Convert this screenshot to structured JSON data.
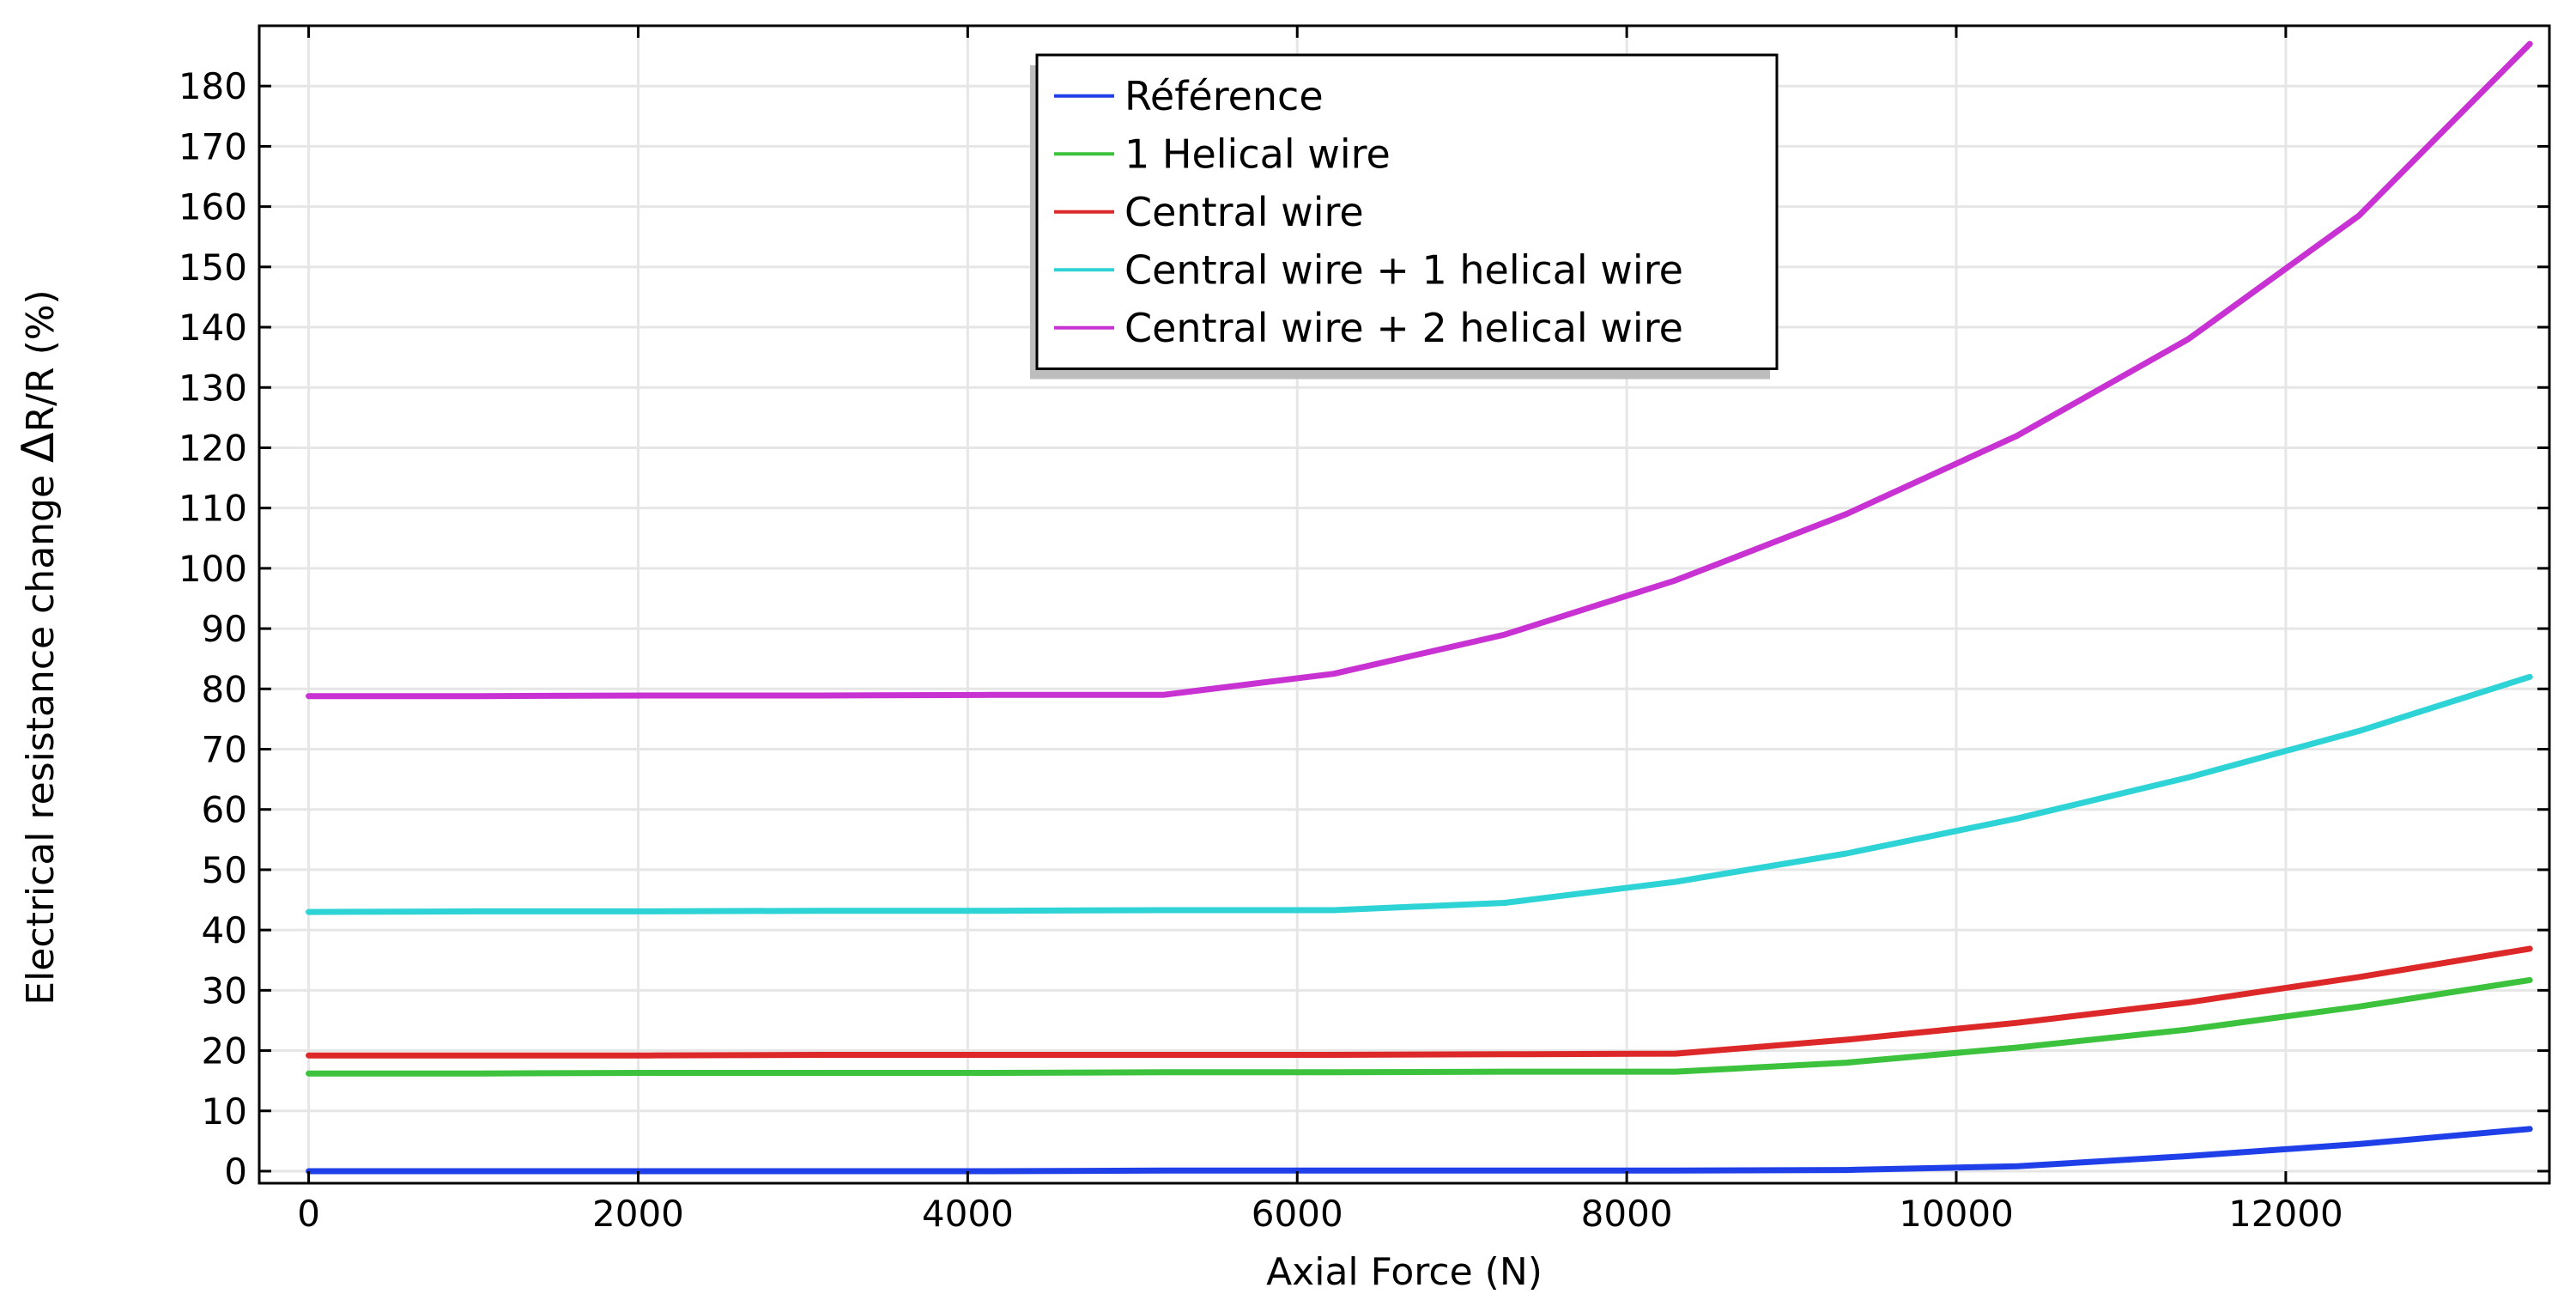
{
  "chart_data": {
    "type": "line",
    "xlabel": "Axial Force (N)",
    "ylabel_prefix": "Electrical resistance change ",
    "ylabel_delta": "Δ",
    "ylabel_suffix": "R/R (%)",
    "xlim": [
      -300,
      13600
    ],
    "ylim": [
      -2,
      190
    ],
    "xticks": [
      0,
      2000,
      4000,
      6000,
      8000,
      10000,
      12000
    ],
    "yticks": [
      0,
      10,
      20,
      30,
      40,
      50,
      60,
      70,
      80,
      90,
      100,
      110,
      120,
      130,
      140,
      150,
      160,
      170,
      180
    ],
    "grid": true,
    "legend_position": "top-center",
    "series": [
      {
        "name": "Référence",
        "color": "#1f3fe8",
        "x": [
          0,
          1037,
          2074,
          3111,
          4148,
          5185,
          6222,
          7259,
          8296,
          9333,
          10370,
          11407,
          12444,
          13481
        ],
        "y": [
          0,
          0,
          0,
          0,
          0,
          0.1,
          0.1,
          0.1,
          0.1,
          0.2,
          0.8,
          2.5,
          4.5,
          7.0
        ]
      },
      {
        "name": "1 Helical wire",
        "color": "#3cc23c",
        "x": [
          0,
          1037,
          2074,
          3111,
          4148,
          5185,
          6222,
          7259,
          8296,
          9333,
          10370,
          11407,
          12444,
          13481
        ],
        "y": [
          16.2,
          16.2,
          16.3,
          16.3,
          16.3,
          16.4,
          16.4,
          16.5,
          16.5,
          18.0,
          20.5,
          23.5,
          27.3,
          31.7
        ]
      },
      {
        "name": "Central wire",
        "color": "#dc2828",
        "x": [
          0,
          1037,
          2074,
          3111,
          4148,
          5185,
          6222,
          7259,
          8296,
          9333,
          10370,
          11407,
          12444,
          13481
        ],
        "y": [
          19.2,
          19.2,
          19.2,
          19.3,
          19.3,
          19.3,
          19.3,
          19.4,
          19.5,
          21.8,
          24.6,
          28.0,
          32.2,
          36.9
        ]
      },
      {
        "name": "Central wire + 1 helical wire",
        "color": "#2ed3d6",
        "x": [
          0,
          1037,
          2074,
          3111,
          4148,
          5185,
          6222,
          7259,
          8296,
          9333,
          10370,
          11407,
          12444,
          13481
        ],
        "y": [
          43.0,
          43.1,
          43.1,
          43.2,
          43.2,
          43.3,
          43.3,
          44.5,
          48.0,
          52.7,
          58.5,
          65.3,
          73.0,
          82.0
        ]
      },
      {
        "name": "Central wire + 2 helical wire",
        "color": "#c832d2",
        "x": [
          0,
          1037,
          2074,
          3111,
          4148,
          5185,
          6222,
          7259,
          8296,
          9333,
          10370,
          11407,
          12444,
          13481
        ],
        "y": [
          78.8,
          78.8,
          78.9,
          78.9,
          79.0,
          79.0,
          82.5,
          89.0,
          98.0,
          109.0,
          122.0,
          138.0,
          158.5,
          187.0
        ]
      }
    ]
  }
}
